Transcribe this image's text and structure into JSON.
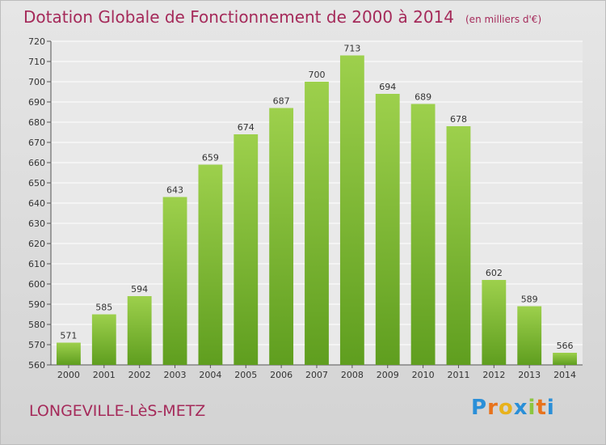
{
  "chart_data": {
    "type": "bar",
    "title": "Dotation Globale de Fonctionnement de 2000 à 2014",
    "unit": "(en milliers d'€)",
    "categories": [
      "2000",
      "2001",
      "2002",
      "2003",
      "2004",
      "2005",
      "2006",
      "2007",
      "2008",
      "2009",
      "2010",
      "2011",
      "2012",
      "2013",
      "2014"
    ],
    "values": [
      571,
      585,
      594,
      643,
      659,
      674,
      687,
      700,
      713,
      694,
      689,
      678,
      602,
      589,
      566
    ],
    "ylim": [
      560,
      720
    ],
    "yticks": [
      560,
      570,
      580,
      590,
      600,
      610,
      620,
      630,
      640,
      650,
      660,
      670,
      680,
      690,
      700,
      710,
      720
    ],
    "grid": true,
    "bar_color_top": "#9dd04c",
    "bar_color_bottom": "#5f9e1f"
  },
  "footer": {
    "commune": "LONGEVILLE-LèS-METZ",
    "logo_letters": [
      "P",
      "r",
      "o",
      "x",
      "i",
      "t",
      "i"
    ],
    "logo_colors": [
      "#2a8fd8",
      "#e8731c",
      "#e8b21c",
      "#2a8fd8",
      "#8cc63f",
      "#e8731c",
      "#2a8fd8"
    ]
  }
}
